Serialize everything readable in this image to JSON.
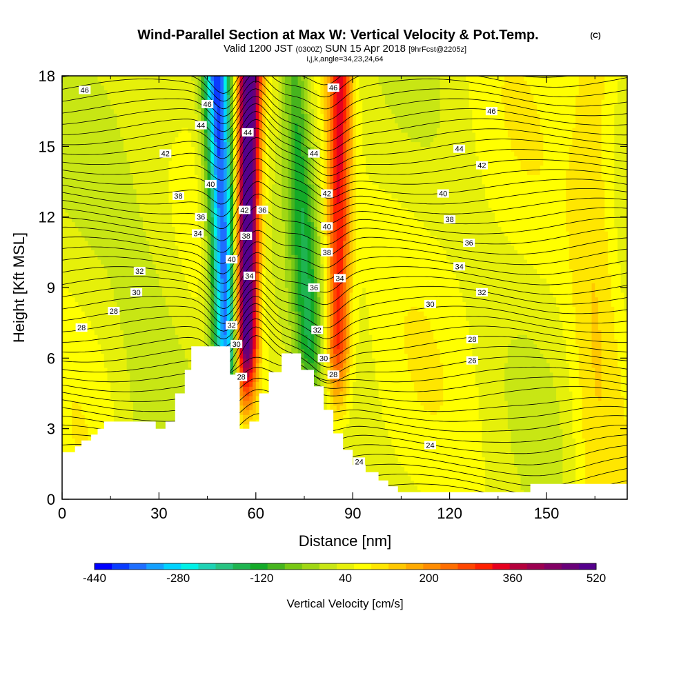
{
  "header": {
    "title": "Wind-Parallel Section at Max W: Vertical Velocity & Pot.Temp.",
    "title_mark": "(C)",
    "subtitle_prefix": "Valid 1200 JST",
    "subtitle_utc": "(0300Z)",
    "subtitle_date": "SUN 15 Apr 2018",
    "subtitle_fcst": "[9hrFcst@2205z]",
    "subtitle2": "i,j,k,angle=34,23,24,64"
  },
  "colorbar": {
    "label": "Vertical Velocity [cm/s]",
    "tick_labels": [
      "-440",
      "-280",
      "-120",
      "40",
      "200",
      "360",
      "520"
    ],
    "colors": [
      "#0000ff",
      "#0a3cff",
      "#1e6eff",
      "#14a0ff",
      "#00d2ff",
      "#00f0e6",
      "#1ed2b4",
      "#28c382",
      "#1eb450",
      "#14aa28",
      "#46b41e",
      "#78c814",
      "#a0d714",
      "#c8e614",
      "#e6f00a",
      "#ffff00",
      "#ffe600",
      "#ffc800",
      "#ffaa00",
      "#ff8c00",
      "#ff6e00",
      "#ff4600",
      "#ff2000",
      "#e6001e",
      "#b4003c",
      "#9b0050",
      "#820064",
      "#690078",
      "#55008c"
    ]
  },
  "chart_data": {
    "type": "contour",
    "title": "Wind-Parallel Section at Max W: Vertical Velocity & Pot.Temp.",
    "xlabel": "Distance [nm]",
    "ylabel": "Height [Kft MSL]",
    "xlim": [
      0,
      175
    ],
    "ylim": [
      0,
      18
    ],
    "x_ticks": [
      0,
      30,
      60,
      90,
      120,
      150
    ],
    "y_ticks": [
      0,
      3,
      6,
      9,
      12,
      15,
      18
    ],
    "filled_field": {
      "name": "Vertical Velocity [cm/s]",
      "range": [
        -440,
        520
      ],
      "interval": 40,
      "features": [
        {
          "kind": "downdraft",
          "x_top": 48,
          "x_bottom": 53,
          "min_value": -440
        },
        {
          "kind": "updraft",
          "x_top": 58,
          "x_bottom": 56,
          "max_value": 520
        },
        {
          "kind": "downdraft",
          "x_top": 72,
          "x_bottom": 79,
          "min_value": -160
        },
        {
          "kind": "updraft",
          "x_top": 86,
          "x_bottom": 85,
          "max_value": 280
        }
      ]
    },
    "contour_field": {
      "name": "Potential Temperature",
      "interval": 2,
      "labels": [
        {
          "text": "46",
          "x": 7,
          "y": 17.4
        },
        {
          "text": "46",
          "x": 45,
          "y": 16.8
        },
        {
          "text": "44",
          "x": 43,
          "y": 15.9
        },
        {
          "text": "42",
          "x": 32,
          "y": 14.7
        },
        {
          "text": "40",
          "x": 46,
          "y": 13.4
        },
        {
          "text": "38",
          "x": 36,
          "y": 12.9
        },
        {
          "text": "36",
          "x": 43,
          "y": 12.0
        },
        {
          "text": "34",
          "x": 42,
          "y": 11.3
        },
        {
          "text": "32",
          "x": 24,
          "y": 9.7
        },
        {
          "text": "30",
          "x": 23,
          "y": 8.8
        },
        {
          "text": "28",
          "x": 16,
          "y": 8.0
        },
        {
          "text": "28",
          "x": 6,
          "y": 7.3
        },
        {
          "text": "44",
          "x": 57.5,
          "y": 15.6
        },
        {
          "text": "42",
          "x": 56.5,
          "y": 12.3
        },
        {
          "text": "38",
          "x": 57,
          "y": 11.2
        },
        {
          "text": "36",
          "x": 62,
          "y": 12.3
        },
        {
          "text": "40",
          "x": 52.5,
          "y": 10.2
        },
        {
          "text": "34",
          "x": 58,
          "y": 9.5
        },
        {
          "text": "32",
          "x": 52.5,
          "y": 7.4
        },
        {
          "text": "30",
          "x": 54,
          "y": 6.6
        },
        {
          "text": "28",
          "x": 55.5,
          "y": 5.2
        },
        {
          "text": "46",
          "x": 84,
          "y": 17.5
        },
        {
          "text": "44",
          "x": 78,
          "y": 14.7
        },
        {
          "text": "42",
          "x": 82,
          "y": 13.0
        },
        {
          "text": "40",
          "x": 82,
          "y": 11.6
        },
        {
          "text": "38",
          "x": 82,
          "y": 10.5
        },
        {
          "text": "36",
          "x": 78,
          "y": 9.0
        },
        {
          "text": "34",
          "x": 86,
          "y": 9.4
        },
        {
          "text": "32",
          "x": 79,
          "y": 7.2
        },
        {
          "text": "30",
          "x": 81,
          "y": 6.0
        },
        {
          "text": "28",
          "x": 84,
          "y": 5.3
        },
        {
          "text": "24",
          "x": 92,
          "y": 1.6
        },
        {
          "text": "46",
          "x": 133,
          "y": 16.5
        },
        {
          "text": "44",
          "x": 123,
          "y": 14.9
        },
        {
          "text": "42",
          "x": 130,
          "y": 14.2
        },
        {
          "text": "40",
          "x": 118,
          "y": 13.0
        },
        {
          "text": "38",
          "x": 120,
          "y": 11.9
        },
        {
          "text": "36",
          "x": 126,
          "y": 10.9
        },
        {
          "text": "34",
          "x": 123,
          "y": 9.9
        },
        {
          "text": "32",
          "x": 130,
          "y": 8.8
        },
        {
          "text": "30",
          "x": 114,
          "y": 8.3
        },
        {
          "text": "28",
          "x": 127,
          "y": 6.8
        },
        {
          "text": "26",
          "x": 127,
          "y": 5.9
        },
        {
          "text": "24",
          "x": 114,
          "y": 2.3
        }
      ]
    },
    "terrain_profile": [
      [
        0,
        2
      ],
      [
        4,
        2
      ],
      [
        4,
        2.25
      ],
      [
        6,
        2.25
      ],
      [
        6,
        2.5
      ],
      [
        9,
        2.5
      ],
      [
        9,
        2.75
      ],
      [
        11,
        2.75
      ],
      [
        11,
        3
      ],
      [
        13,
        3
      ],
      [
        13,
        3.3
      ],
      [
        29,
        3.3
      ],
      [
        29,
        3
      ],
      [
        32,
        3
      ],
      [
        32,
        3.3
      ],
      [
        35,
        3.3
      ],
      [
        35,
        4.5
      ],
      [
        38,
        4.5
      ],
      [
        38,
        5.5
      ],
      [
        40,
        5.5
      ],
      [
        40,
        6.5
      ],
      [
        52,
        6.5
      ],
      [
        52,
        5.3
      ],
      [
        55,
        5.3
      ],
      [
        55,
        3
      ],
      [
        58,
        3
      ],
      [
        58,
        3.3
      ],
      [
        61,
        3.3
      ],
      [
        61,
        4.5
      ],
      [
        64,
        4.5
      ],
      [
        64,
        5.4
      ],
      [
        68,
        5.4
      ],
      [
        68,
        6.2
      ],
      [
        74,
        6.2
      ],
      [
        74,
        5.5
      ],
      [
        78,
        5.5
      ],
      [
        78,
        4.8
      ],
      [
        81,
        4.8
      ],
      [
        81,
        3.8
      ],
      [
        84,
        3.8
      ],
      [
        84,
        2.8
      ],
      [
        87,
        2.8
      ],
      [
        87,
        2.1
      ],
      [
        90,
        2.1
      ],
      [
        90,
        1.45
      ],
      [
        94,
        1.45
      ],
      [
        94,
        1.15
      ],
      [
        98,
        1.15
      ],
      [
        98,
        0.8
      ],
      [
        101,
        0.8
      ],
      [
        101,
        0.55
      ],
      [
        104,
        0.55
      ],
      [
        104,
        0.3
      ],
      [
        145,
        0.3
      ],
      [
        145,
        0.65
      ],
      [
        175,
        0.65
      ]
    ]
  }
}
